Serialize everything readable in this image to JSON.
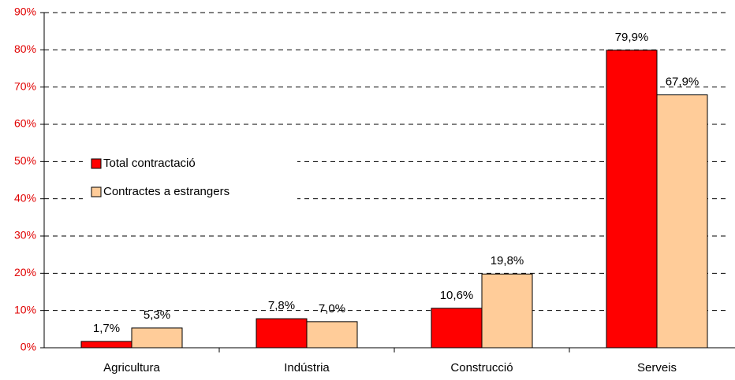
{
  "chart_data": {
    "type": "bar",
    "categories": [
      "Agricultura",
      "Indústria",
      "Construcció",
      "Serveis"
    ],
    "series": [
      {
        "name": "Total contractació",
        "color": "#ff0000",
        "values": [
          1.7,
          7.8,
          10.6,
          79.9
        ],
        "value_labels": [
          "1,7%",
          "7,8%",
          "10,6%",
          "79,9%"
        ]
      },
      {
        "name": "Contractes a estrangers",
        "color": "#ffcc99",
        "values": [
          5.3,
          7.0,
          19.8,
          67.9
        ],
        "value_labels": [
          "5,3%",
          "7,0%",
          "19,8%",
          "67,9%"
        ]
      }
    ],
    "ylim": [
      0,
      90
    ],
    "yticks": [
      {
        "value": 0,
        "label": "0%"
      },
      {
        "value": 10,
        "label": "10%"
      },
      {
        "value": 20,
        "label": "20%"
      },
      {
        "value": 30,
        "label": "30%"
      },
      {
        "value": 40,
        "label": "40%"
      },
      {
        "value": 50,
        "label": "50%"
      },
      {
        "value": 60,
        "label": "60%"
      },
      {
        "value": 70,
        "label": "70%"
      },
      {
        "value": 80,
        "label": "80%"
      },
      {
        "value": 90,
        "label": "90%"
      }
    ],
    "grid": true,
    "legend": "left"
  }
}
